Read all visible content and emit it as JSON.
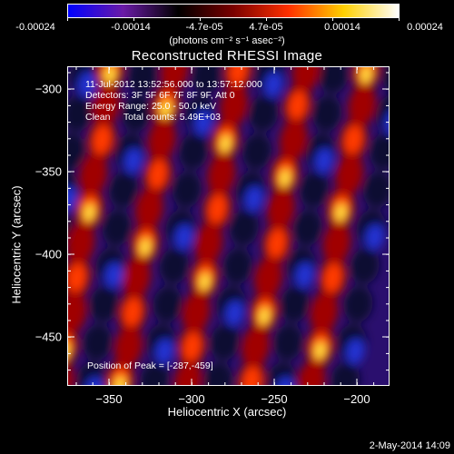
{
  "colorbar": {
    "ticks": [
      "-0.00024",
      "-0.00014",
      "-4.7e-05",
      "4.7e-05",
      "0.00014",
      "0.00024"
    ],
    "units": "(photons cm⁻² s⁻¹ asec⁻²)",
    "colors": [
      "#0000ff",
      "#6a1aa6",
      "#000000",
      "#7a0000",
      "#ff3000",
      "#ffd000",
      "#ffffff"
    ]
  },
  "image": {
    "title": "Reconstructed RHESSI Image",
    "info_lines": [
      "11-Jul-2012 13:52:56.000 to 13:57:12.000",
      "Detectors: 3F 5F 6F 7F 8F 9F, Att 0",
      "Energy Range: 25.0 - 50.0 keV",
      "Clean     Total counts: 5.49E+03"
    ],
    "peak_label": "Position of Peak = [-287,-459]",
    "x_axis_label": "Heliocentric X (arcsec)",
    "y_axis_label": "Heliocentric Y (arcsec)",
    "x_ticks": [
      "−350",
      "−300",
      "−250",
      "−200"
    ],
    "y_ticks": [
      "−300",
      "−350",
      "−400",
      "−450"
    ],
    "x_range": [
      -375,
      -180
    ],
    "y_range": [
      -480,
      -287
    ]
  },
  "footer": {
    "date": "2-May-2014 14:09"
  }
}
